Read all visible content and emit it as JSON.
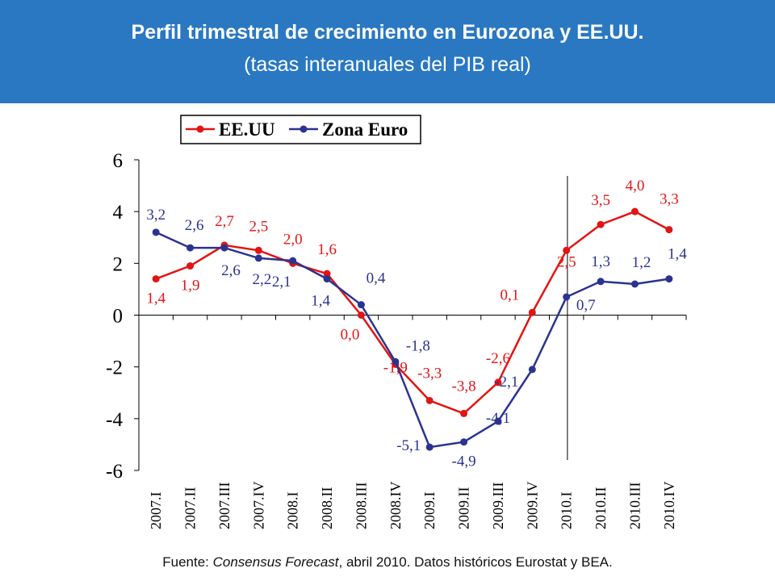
{
  "header": {
    "title": "Perfil trimestral de crecimiento en Eurozona y EE.UU.",
    "subtitle": "(tasas interanuales del PIB real)",
    "background_color": "#2a78c2"
  },
  "footer": {
    "prefix": "Fuente: ",
    "italic": "Consensus Forecast",
    "suffix": ", abril 2010. Datos históricos Eurostat y BEA."
  },
  "chart_data": {
    "type": "line",
    "title": "",
    "xlabel": "",
    "ylabel": "",
    "ylim": [
      -6,
      6
    ],
    "yticks": [
      "6",
      "4",
      "2",
      "0",
      "-2",
      "-4",
      "-6"
    ],
    "ytick_values": [
      6,
      4,
      2,
      0,
      -2,
      -4,
      -6
    ],
    "grid": false,
    "legend_position": "top",
    "categories": [
      "2007.I",
      "2007.II",
      "2007.III",
      "2007.IV",
      "2008.I",
      "2008.II",
      "2008.III",
      "2008.IV",
      "2009.I",
      "2009.II",
      "2009.III",
      "2009.IV",
      "2010.I",
      "2010.II",
      "2010.III",
      "2010.IV"
    ],
    "vertical_line_between": [
      "2010.I",
      "2010.II"
    ],
    "series": [
      {
        "name": "EE.UU",
        "color": "#e31414",
        "values": [
          1.4,
          1.9,
          2.7,
          2.5,
          2.0,
          1.6,
          0.0,
          -1.9,
          -3.3,
          -3.8,
          -2.6,
          0.1,
          2.5,
          3.5,
          4.0,
          3.3
        ],
        "labels": [
          "1,4",
          "1,9",
          "2,7",
          "2,5",
          "2,0",
          "1,6",
          "0,0",
          "-1,9",
          "-3,3",
          "-3,8",
          "-2,6",
          "0,1",
          "2,5",
          "3,5",
          "4,0",
          "3,3"
        ]
      },
      {
        "name": "Zona Euro",
        "color": "#2b3390",
        "values": [
          3.2,
          2.6,
          2.6,
          2.2,
          2.1,
          1.4,
          0.4,
          -1.8,
          -5.1,
          -4.9,
          -4.1,
          -2.1,
          0.7,
          1.3,
          1.2,
          1.4
        ],
        "labels": [
          "3,2",
          "2,6",
          "2,6",
          "2,2",
          "2,1",
          "1,4",
          "0,4",
          "-1,8",
          "-5,1",
          "-4,9",
          "-4,1",
          "-2,1",
          "0,7",
          "1,3",
          "1,2",
          "1,4"
        ]
      }
    ]
  }
}
